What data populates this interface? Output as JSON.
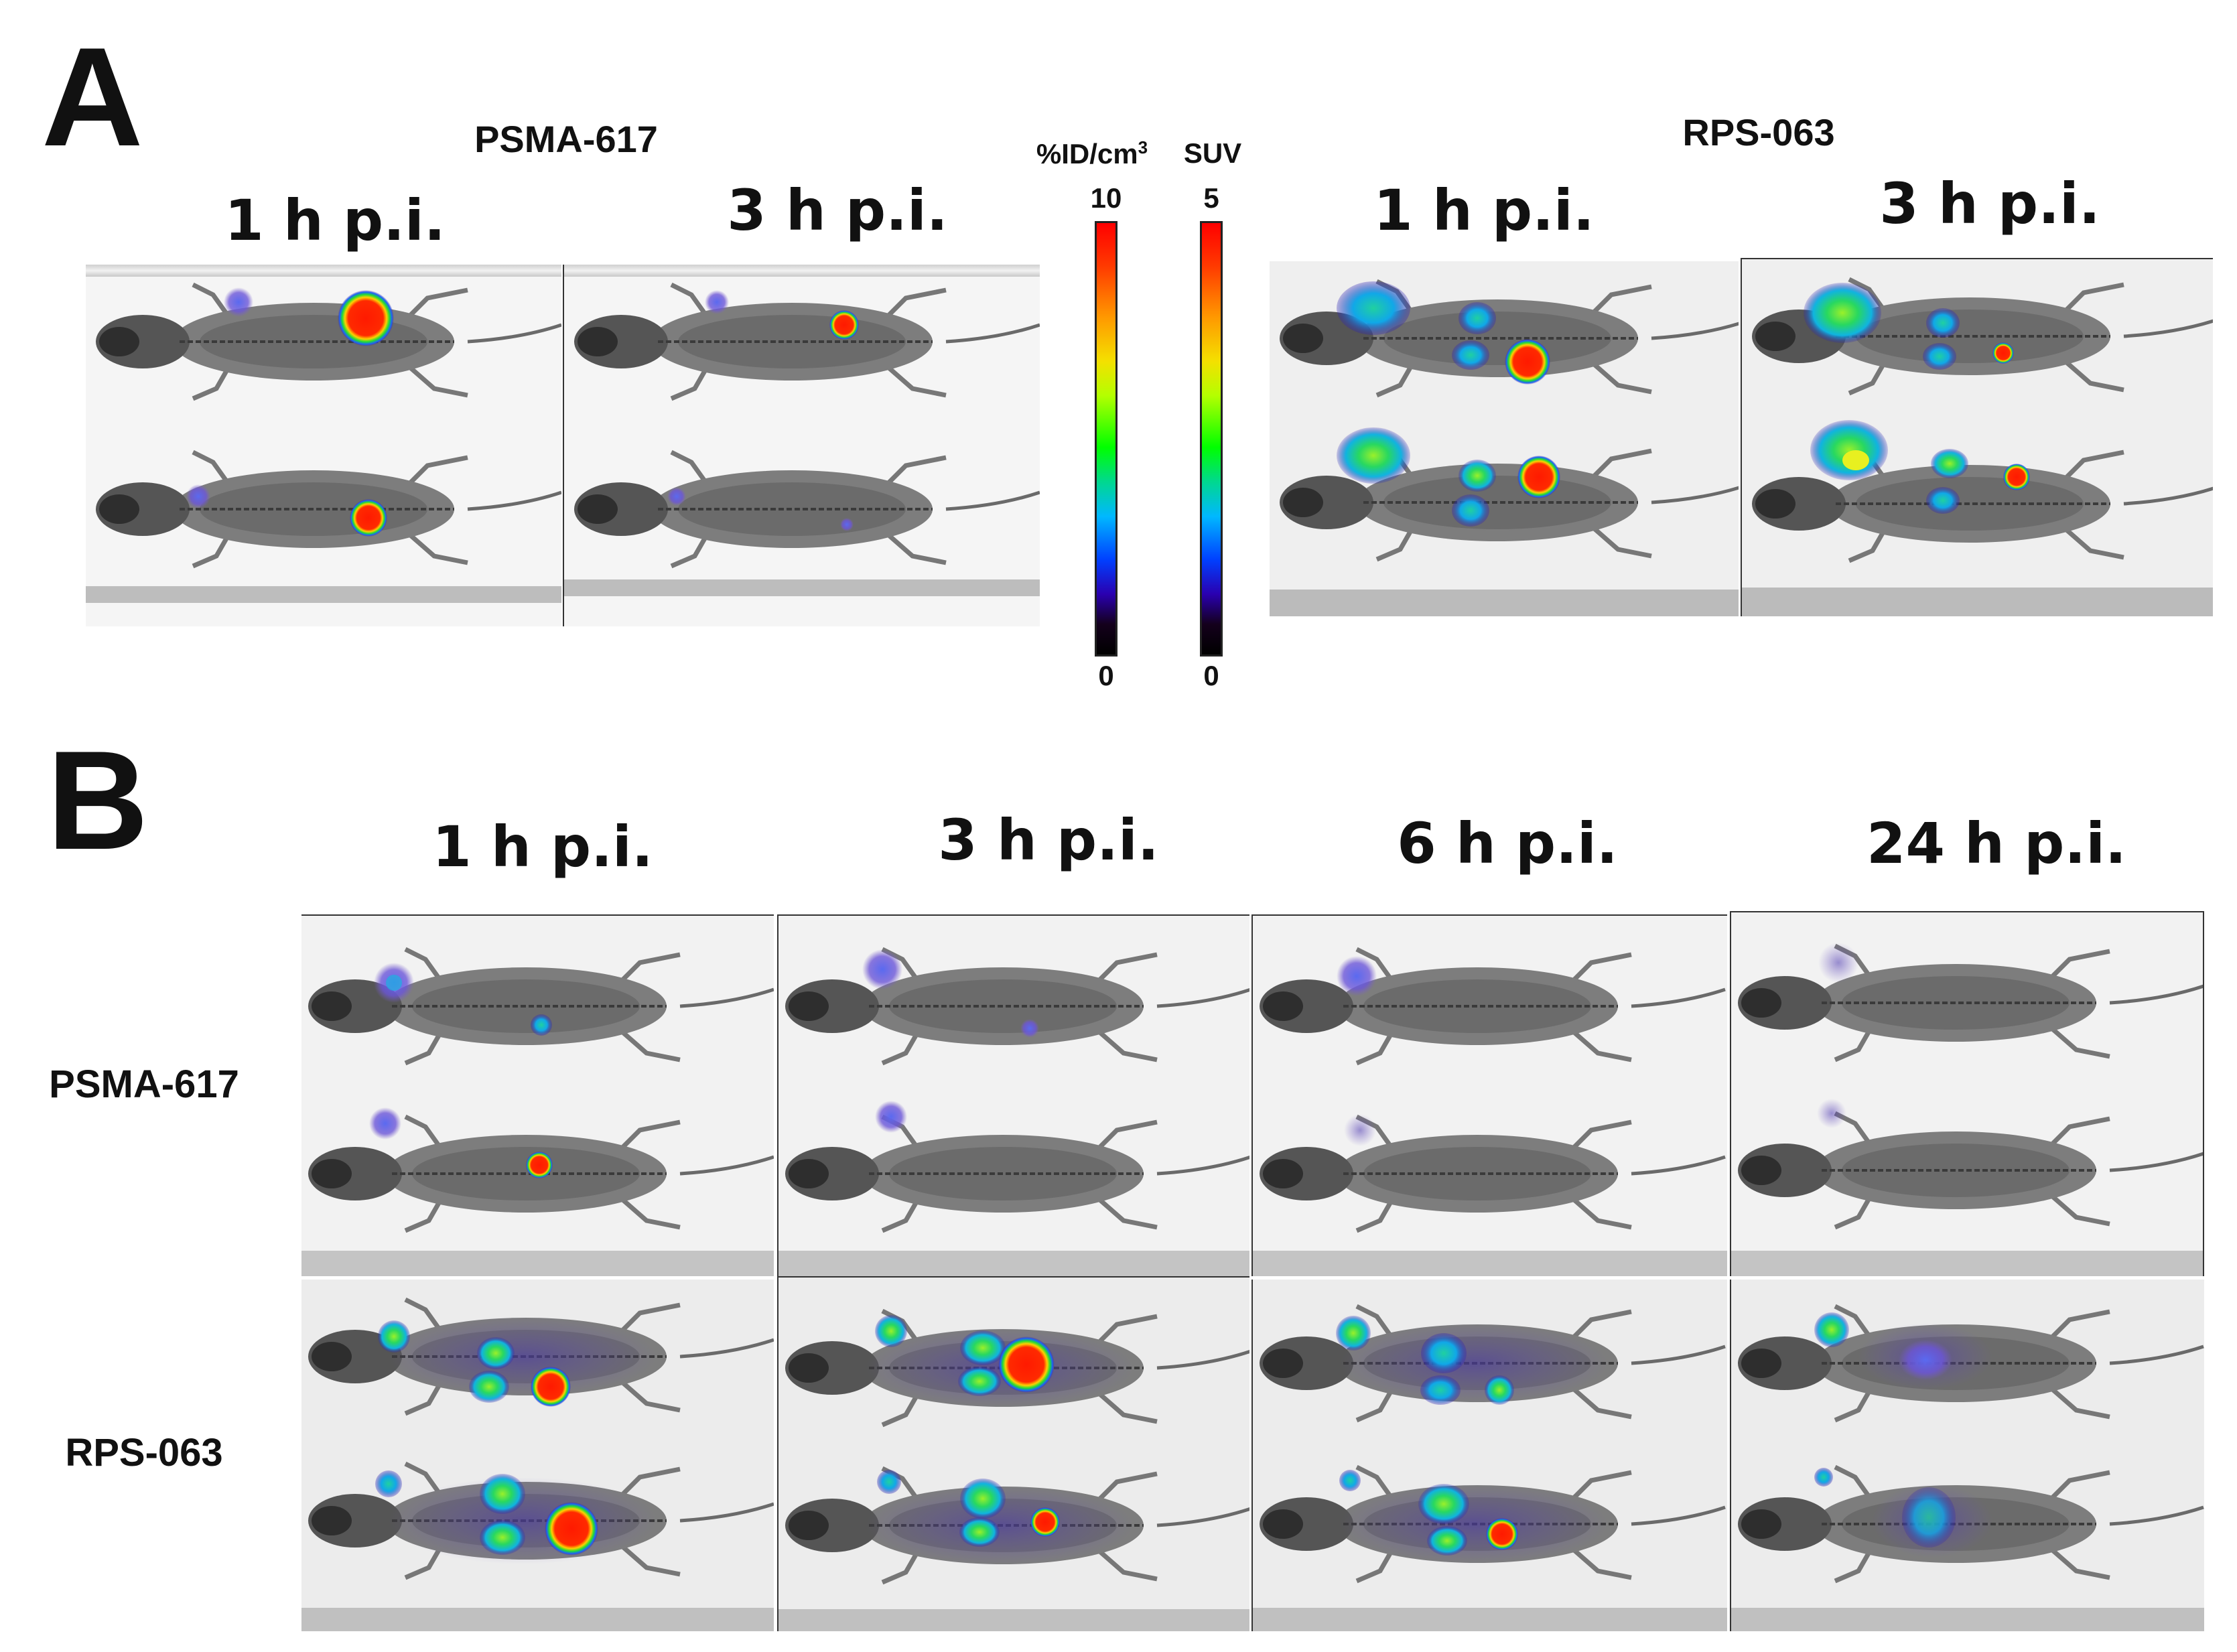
{
  "panel_a": {
    "letter": "A",
    "left_tracer": "PSMA-617",
    "right_tracer": "RPS-063",
    "times": [
      "1 h p.i.",
      "3 h p.i.",
      "1 h p.i.",
      "3 h p.i."
    ]
  },
  "colorbars": {
    "left": {
      "unit_main": "%ID/cm",
      "unit_sup": "3",
      "max": "10",
      "min": "0"
    },
    "right": {
      "unit_main": "SUV",
      "max": "5",
      "min": "0"
    }
  },
  "panel_b": {
    "letter": "B",
    "times": [
      "1 h p.i.",
      "3 h p.i.",
      "6 h p.i.",
      "24 h p.i."
    ],
    "rows": [
      "PSMA-617",
      "RPS-063"
    ]
  },
  "colors": {
    "background": "#ffffff",
    "text": "#111111",
    "hot": "#ff0000",
    "cool": "#00ff00",
    "cold": "#0040ff"
  }
}
